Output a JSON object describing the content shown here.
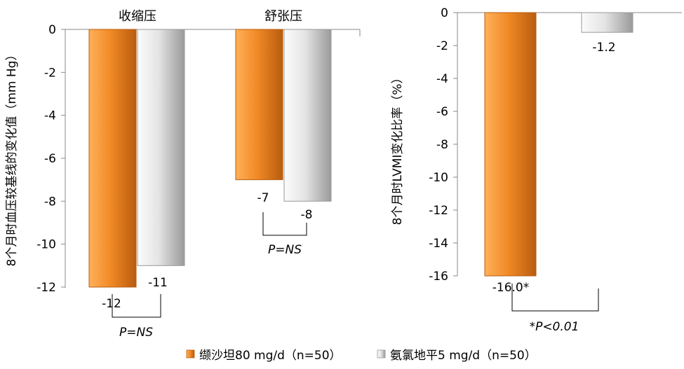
{
  "colors": {
    "valsartan": "#f28a26",
    "valsartan_light": "#ffb05a",
    "valsartan_dark": "#b85c0f",
    "amlodipine": "#e4e4e4",
    "amlodipine_light": "#fbfbfb",
    "amlodipine_dark": "#9a9a9a",
    "axis": "#8a8a8a"
  },
  "legend": {
    "valsartan": "缬沙坦80 mg/d（n=50）",
    "amlodipine": "氨氯地平5 mg/d（n=50）"
  },
  "left_chart": {
    "ylabel": "8个月时血压较基线的变化值（mm Hg）",
    "sys_title": "收缩压",
    "dia_title": "舒张压",
    "sys_p": "P=NS",
    "dia_p": "P=NS"
  },
  "right_chart": {
    "ylabel": "8个月时LVMI变化比率（%）",
    "p": "*P<0.01"
  },
  "chart_data": [
    {
      "type": "bar",
      "categories": [
        "收缩压",
        "舒张压"
      ],
      "series": [
        {
          "name": "缬沙坦80 mg/d（n=50）",
          "values": [
            -12,
            -7
          ],
          "labels": [
            "-12",
            "-7"
          ]
        },
        {
          "name": "氨氯地平5 mg/d（n=50）",
          "values": [
            -11,
            -8
          ],
          "labels": [
            "-11",
            "-8"
          ]
        }
      ],
      "xlabel": "",
      "ylabel": "8个月时血压较基线的变化值（mm Hg）",
      "ylim": [
        -12,
        0
      ],
      "yticks": [
        0,
        -2,
        -4,
        -6,
        -8,
        -10,
        -12
      ],
      "annotations": [
        "P=NS",
        "P=NS"
      ],
      "grid": false,
      "legend": "bottom"
    },
    {
      "type": "bar",
      "categories": [
        ""
      ],
      "series": [
        {
          "name": "缬沙坦80 mg/d（n=50）",
          "values": [
            -16.0
          ],
          "labels": [
            "-16.0*"
          ]
        },
        {
          "name": "氨氯地平5 mg/d（n=50）",
          "values": [
            -1.2
          ],
          "labels": [
            "-1.2"
          ]
        }
      ],
      "xlabel": "",
      "ylabel": "8个月时LVMI变化比率（%）",
      "ylim": [
        -16,
        0
      ],
      "yticks": [
        0,
        -2,
        -4,
        -6,
        -8,
        -10,
        -12,
        -14,
        -16
      ],
      "annotations": [
        "*P<0.01"
      ],
      "grid": false,
      "legend": "bottom"
    }
  ]
}
